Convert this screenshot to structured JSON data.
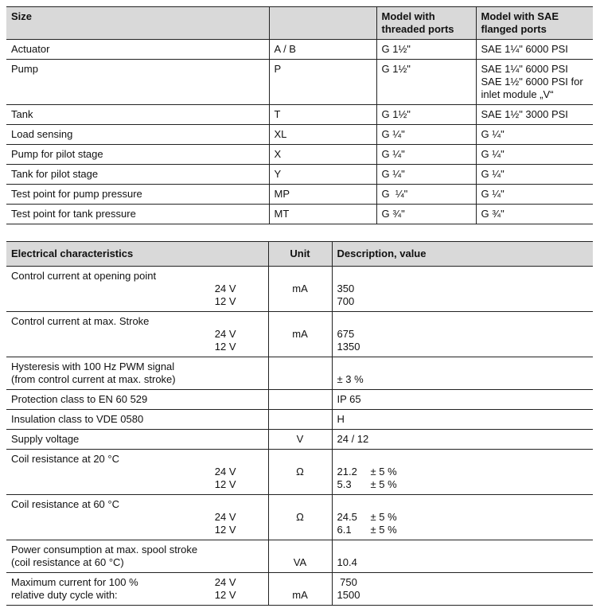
{
  "ports_table": {
    "headers": [
      "Size",
      "",
      "Model with threaded ports",
      "Model with SAE flanged ports"
    ],
    "header_lines": [
      [
        "Size"
      ],
      [],
      [
        "Model with",
        "threaded ports"
      ],
      [
        "Model with SAE",
        "flanged ports"
      ]
    ],
    "rows": [
      {
        "size": "Actuator",
        "port": "A / B",
        "threaded": "G 1½\"",
        "sae": [
          "SAE 1¼\" 6000 PSI"
        ]
      },
      {
        "size": "Pump",
        "port": "P",
        "threaded": "G 1½\"",
        "sae": [
          "SAE 1¼\" 6000 PSI",
          "SAE 1½\" 6000 PSI for",
          "inlet module „V“"
        ]
      },
      {
        "size": "Tank",
        "port": "T",
        "threaded": "G 1½\"",
        "sae": [
          "SAE 1½\" 3000 PSI"
        ]
      },
      {
        "size": "Load sensing",
        "port": "XL",
        "threaded": "G ¼\"",
        "sae": [
          "G ¼\""
        ]
      },
      {
        "size": "Pump for pilot stage",
        "port": "X",
        "threaded": "G ¼\"",
        "sae": [
          "G ¼\""
        ]
      },
      {
        "size": "Tank for pilot stage",
        "port": "Y",
        "threaded": "G ¼\"",
        "sae": [
          "G ¼\""
        ]
      },
      {
        "size": "Test point for pump pressure",
        "port": "MP",
        "threaded": "G  ¼\"",
        "sae": [
          "G ¼\""
        ]
      },
      {
        "size": "Test point for tank pressure",
        "port": "MT",
        "threaded": "G ¾\"",
        "sae": [
          "G ¾\""
        ]
      }
    ]
  },
  "electrical_table": {
    "headers": [
      "Electrical characteristics",
      "Unit",
      "Description, value"
    ],
    "rows": [
      {
        "desc": [
          "Control current at opening point",
          "",
          ""
        ],
        "volt": [
          "",
          "24 V",
          "12 V"
        ],
        "unit": [
          "",
          "mA",
          ""
        ],
        "value": [
          "",
          "350",
          "700"
        ]
      },
      {
        "desc": [
          "Control current at max. Stroke",
          "",
          ""
        ],
        "volt": [
          "",
          "24 V",
          "12 V"
        ],
        "unit": [
          "",
          "mA",
          ""
        ],
        "value": [
          "",
          "675",
          "1350"
        ]
      },
      {
        "desc": [
          "Hysteresis with 100 Hz PWM signal",
          "(from control current at max. stroke)"
        ],
        "volt": [
          "",
          ""
        ],
        "unit": [
          "",
          ""
        ],
        "value": [
          "",
          "± 3 %"
        ]
      },
      {
        "desc": [
          "Protection class to EN 60 529"
        ],
        "volt": [
          ""
        ],
        "unit": [
          ""
        ],
        "value": [
          "IP 65"
        ]
      },
      {
        "desc": [
          "Insulation class to VDE 0580"
        ],
        "volt": [
          ""
        ],
        "unit": [
          ""
        ],
        "value": [
          "H"
        ]
      },
      {
        "desc": [
          "Supply voltage"
        ],
        "volt": [
          ""
        ],
        "unit": [
          "V"
        ],
        "value": [
          "24 / 12"
        ]
      },
      {
        "desc": [
          "Coil resistance at 20 °C",
          "",
          ""
        ],
        "volt": [
          "",
          "24 V",
          "12 V"
        ],
        "unit": [
          "",
          "Ω",
          ""
        ],
        "value": [
          "",
          "21.2",
          "5.3"
        ],
        "tol": [
          "",
          "± 5 %",
          "± 5 %"
        ]
      },
      {
        "desc": [
          "Coil resistance at 60 °C",
          "",
          ""
        ],
        "volt": [
          "",
          "24 V",
          "12 V"
        ],
        "unit": [
          "",
          "Ω",
          ""
        ],
        "value": [
          "",
          "24.5",
          "6.1"
        ],
        "tol": [
          "",
          "± 5 %",
          "± 5 %"
        ]
      },
      {
        "desc": [
          "Power consumption at max. spool stroke",
          "(coil resistance at 60 °C)"
        ],
        "volt": [
          "",
          ""
        ],
        "unit": [
          "",
          "VA"
        ],
        "value": [
          "",
          "10.4"
        ]
      },
      {
        "desc": [
          "Maximum current for 100 %",
          "relative duty cycle with:"
        ],
        "volt": [
          "24 V",
          "12 V"
        ],
        "unit": [
          "",
          "mA"
        ],
        "value": [
          " 750",
          "1500"
        ]
      }
    ]
  }
}
